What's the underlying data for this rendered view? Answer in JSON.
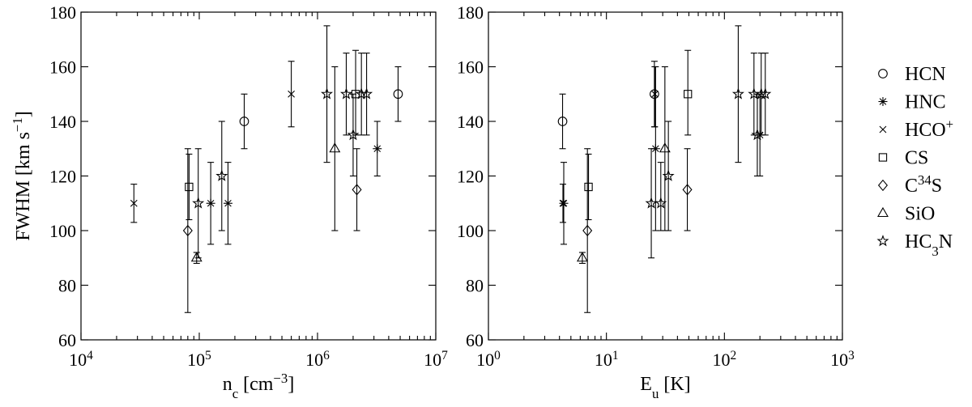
{
  "chart_data": [
    {
      "type": "scatter",
      "xscale": "log",
      "xlim": [
        10000,
        10000000
      ],
      "ylim": [
        60,
        180
      ],
      "x_ticks": [
        10000,
        100000,
        1000000,
        10000000
      ],
      "y_ticks": [
        60,
        80,
        100,
        120,
        140,
        160,
        180
      ],
      "x_tick_labels": [
        {
          "base": "10",
          "exp": "4"
        },
        {
          "base": "10",
          "exp": "5"
        },
        {
          "base": "10",
          "exp": "6"
        },
        {
          "base": "10",
          "exp": "7"
        }
      ],
      "y_tick_labels": [
        "60",
        "80",
        "100",
        "120",
        "140",
        "160",
        "180"
      ],
      "xlabel": {
        "pre": "n",
        "sub": "c",
        "mid": " [cm",
        "sup": "−3",
        "post": "]"
      },
      "ylabel": {
        "pre": "FWHM [km s",
        "sup": "−1",
        "post": "]"
      },
      "series": [
        {
          "name": "HCN",
          "marker": "circle",
          "points": [
            {
              "x": 240000,
              "y": 140,
              "lo": 130,
              "hi": 150
            },
            {
              "x": 4800000,
              "y": 150,
              "lo": 140,
              "hi": 160
            }
          ]
        },
        {
          "name": "HNC",
          "marker": "asterisk",
          "points": [
            {
              "x": 125000,
              "y": 110,
              "lo": 95,
              "hi": 125
            },
            {
              "x": 175000,
              "y": 110,
              "lo": 95,
              "hi": 125
            },
            {
              "x": 3200000,
              "y": 130,
              "lo": 120,
              "hi": 140
            }
          ]
        },
        {
          "name": "HCO+",
          "marker": "cross",
          "points": [
            {
              "x": 28000,
              "y": 110,
              "lo": 103,
              "hi": 117
            },
            {
              "x": 600000,
              "y": 150,
              "lo": 138,
              "hi": 162
            }
          ]
        },
        {
          "name": "CS",
          "marker": "square",
          "points": [
            {
              "x": 82000,
              "y": 116,
              "lo": 104,
              "hi": 128
            },
            {
              "x": 2100000,
              "y": 150,
              "lo": 135,
              "hi": 166
            }
          ]
        },
        {
          "name": "C34S",
          "marker": "diamond",
          "points": [
            {
              "x": 80000,
              "y": 100,
              "lo": 70,
              "hi": 130
            },
            {
              "x": 2150000,
              "y": 115,
              "lo": 100,
              "hi": 130
            }
          ]
        },
        {
          "name": "SiO",
          "marker": "triangle",
          "points": [
            {
              "x": 95000,
              "y": 90,
              "lo": 88,
              "hi": 92
            },
            {
              "x": 1400000,
              "y": 130,
              "lo": 100,
              "hi": 160
            }
          ]
        },
        {
          "name": "HC3N",
          "marker": "star",
          "points": [
            {
              "x": 98000,
              "y": 110,
              "lo": 90,
              "hi": 130
            },
            {
              "x": 155000,
              "y": 120,
              "lo": 100,
              "hi": 140
            },
            {
              "x": 1200000,
              "y": 150,
              "lo": 125,
              "hi": 175
            },
            {
              "x": 1750000,
              "y": 150,
              "lo": 135,
              "hi": 165
            },
            {
              "x": 2000000,
              "y": 135,
              "lo": 120,
              "hi": 150
            },
            {
              "x": 2350000,
              "y": 150,
              "lo": 135,
              "hi": 165
            },
            {
              "x": 2600000,
              "y": 150,
              "lo": 135,
              "hi": 165
            }
          ]
        }
      ]
    },
    {
      "type": "scatter",
      "xscale": "log",
      "xlim": [
        1,
        1000
      ],
      "ylim": [
        60,
        180
      ],
      "x_ticks": [
        1,
        10,
        100,
        1000
      ],
      "y_ticks": [
        60,
        80,
        100,
        120,
        140,
        160,
        180
      ],
      "x_tick_labels": [
        {
          "base": "10",
          "exp": "0"
        },
        {
          "base": "10",
          "exp": "1"
        },
        {
          "base": "10",
          "exp": "2"
        },
        {
          "base": "10",
          "exp": "3"
        }
      ],
      "y_tick_labels": [
        "60",
        "80",
        "100",
        "120",
        "140",
        "160",
        "180"
      ],
      "xlabel": {
        "pre": "E",
        "sub": "u",
        "mid": " [K]",
        "sup": "",
        "post": ""
      },
      "series": [
        {
          "name": "HCN",
          "marker": "circle",
          "points": [
            {
              "x": 4.25,
              "y": 140,
              "lo": 130,
              "hi": 150
            },
            {
              "x": 25.5,
              "y": 150,
              "lo": 138,
              "hi": 162
            }
          ]
        },
        {
          "name": "HNC",
          "marker": "asterisk",
          "points": [
            {
              "x": 4.35,
              "y": 110,
              "lo": 95,
              "hi": 125
            },
            {
              "x": 26.1,
              "y": 130,
              "lo": 100,
              "hi": 160
            },
            {
              "x": 200,
              "y": 135,
              "lo": 120,
              "hi": 150
            }
          ]
        },
        {
          "name": "HCO+",
          "marker": "cross",
          "points": [
            {
              "x": 4.28,
              "y": 110,
              "lo": 103,
              "hi": 117
            },
            {
              "x": 25.7,
              "y": 150,
              "lo": 138,
              "hi": 160
            }
          ]
        },
        {
          "name": "CS",
          "marker": "square",
          "points": [
            {
              "x": 7.05,
              "y": 116,
              "lo": 104,
              "hi": 128
            },
            {
              "x": 49,
              "y": 150,
              "lo": 135,
              "hi": 166
            }
          ]
        },
        {
          "name": "C34S",
          "marker": "diamond",
          "points": [
            {
              "x": 6.9,
              "y": 100,
              "lo": 70,
              "hi": 130
            },
            {
              "x": 48.5,
              "y": 115,
              "lo": 100,
              "hi": 130
            }
          ]
        },
        {
          "name": "SiO",
          "marker": "triangle",
          "points": [
            {
              "x": 6.25,
              "y": 90,
              "lo": 88,
              "hi": 92
            },
            {
              "x": 31.3,
              "y": 130,
              "lo": 100,
              "hi": 160
            }
          ]
        },
        {
          "name": "HC3N",
          "marker": "star",
          "points": [
            {
              "x": 24,
              "y": 110,
              "lo": 90,
              "hi": 130
            },
            {
              "x": 28.9,
              "y": 110,
              "lo": 100,
              "hi": 125
            },
            {
              "x": 33.5,
              "y": 120,
              "lo": 100,
              "hi": 140
            },
            {
              "x": 131,
              "y": 150,
              "lo": 125,
              "hi": 175
            },
            {
              "x": 178,
              "y": 150,
              "lo": 135,
              "hi": 165
            },
            {
              "x": 190,
              "y": 135,
              "lo": 120,
              "hi": 150
            },
            {
              "x": 205,
              "y": 150,
              "lo": 135,
              "hi": 165
            },
            {
              "x": 222,
              "y": 150,
              "lo": 135,
              "hi": 165
            }
          ]
        }
      ]
    }
  ],
  "legend": {
    "placement": "right",
    "entries": [
      {
        "marker": "circle",
        "pre": "HCN",
        "sup": "",
        "sub": "",
        "post": ""
      },
      {
        "marker": "asterisk",
        "pre": "HNC",
        "sup": "",
        "sub": "",
        "post": ""
      },
      {
        "marker": "cross",
        "pre": "HCO",
        "sup": "+",
        "sub": "",
        "post": ""
      },
      {
        "marker": "square",
        "pre": "CS",
        "sup": "",
        "sub": "",
        "post": ""
      },
      {
        "marker": "diamond",
        "pre": "C",
        "sup": "34",
        "sub": "",
        "post": "S"
      },
      {
        "marker": "triangle",
        "pre": "SiO",
        "sup": "",
        "sub": "",
        "post": ""
      },
      {
        "marker": "star",
        "pre": "HC",
        "sup": "",
        "sub": "3",
        "post": "N"
      }
    ]
  }
}
